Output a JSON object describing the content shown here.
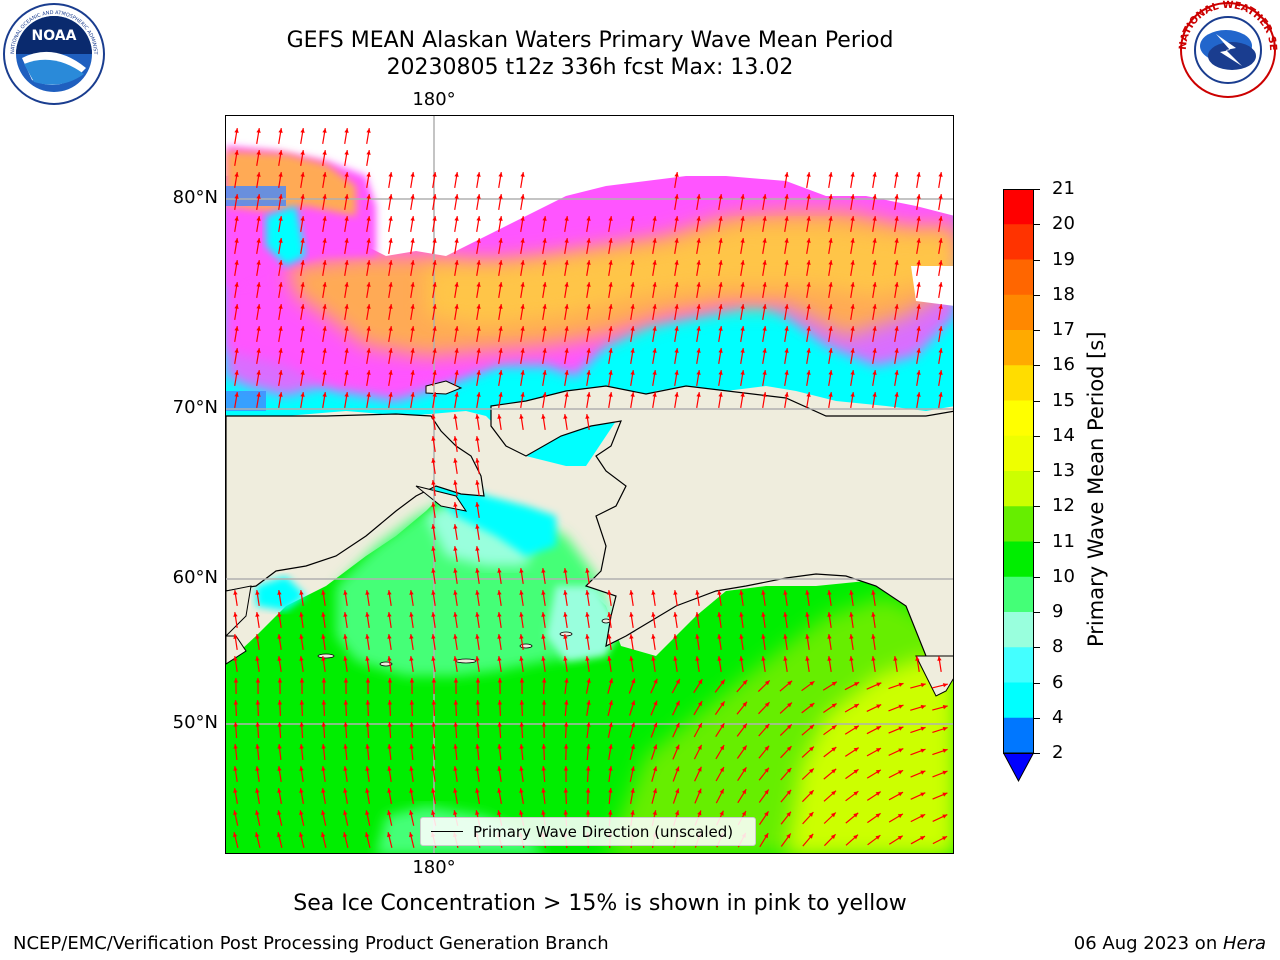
{
  "title": {
    "line1": "GEFS MEAN Alaskan Waters Primary Wave Mean Period",
    "line2": "20230805 t12z 336h fcst   Max: 13.02"
  },
  "logos": {
    "left": {
      "icon": "noaa-logo-icon",
      "text": "NOAA",
      "ring_text": "NATIONAL OCEANIC AND ATMOSPHERIC ADMINISTRATION · U.S. DEPARTMENT OF COMMERCE"
    },
    "right": {
      "icon": "nws-logo-icon",
      "ring_text": "NATIONAL WEATHER SERVICE"
    }
  },
  "map": {
    "lon_label_top": "180°",
    "lon_label_bottom": "180°",
    "lat_labels": [
      "80°N",
      "70°N",
      "60°N",
      "50°N"
    ],
    "land_color": "#efeddd",
    "arrow_color": "#ff0000",
    "gridline_color": "#b0b0b0",
    "legend_label": "Primary Wave Direction (unscaled)"
  },
  "colorbar": {
    "label": "Primary Wave Mean Period [s]",
    "ticks": [
      "21",
      "20",
      "19",
      "18",
      "17",
      "16",
      "15",
      "14",
      "13",
      "12",
      "11",
      "10",
      "9",
      "8",
      "6",
      "4",
      "2"
    ],
    "colors": [
      "#ff0000",
      "#ff3300",
      "#ff6600",
      "#ff8800",
      "#ffaa00",
      "#ffdd00",
      "#ffff00",
      "#eeff00",
      "#ccff00",
      "#66ee00",
      "#00ee00",
      "#44ff77",
      "#99ffdd",
      "#44ffff",
      "#00ffff",
      "#0077ff"
    ],
    "extend_color": "#0000ff"
  },
  "caption": "Sea Ice Concentration > 15% is shown in pink to yellow",
  "footer": {
    "left": "NCEP/EMC/Verification Post Processing Product Generation Branch",
    "right_date": "06 Aug 2023 on ",
    "right_host": "Hera"
  }
}
